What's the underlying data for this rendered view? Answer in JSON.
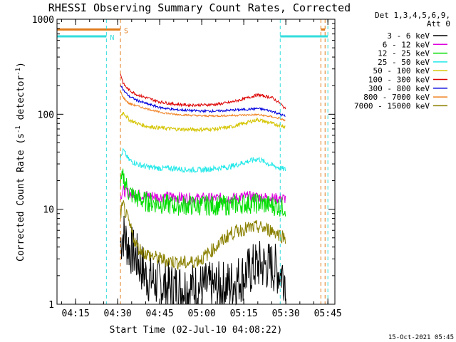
{
  "chart_data": {
    "type": "line",
    "title": "RHESSI Observing Summary Count Rates, Corrected",
    "xlabel": "Start Time (02-Jul-10 04:08:22)",
    "ylabel_main": "Corrected Count Rate (s",
    "ylabel_sup1": "-1",
    "ylabel_mid": " detector",
    "ylabel_sup2": "-1",
    "ylabel_end": ")",
    "y_scale": "log",
    "ylim": [
      1,
      1000
    ],
    "xlim": [
      "04:08:22",
      "05:47:30"
    ],
    "x_ticks": [
      "04:15",
      "04:30",
      "04:45",
      "05:00",
      "05:15",
      "05:30",
      "05:45"
    ],
    "y_ticks": [
      "1",
      "10",
      "100",
      "1000"
    ],
    "legend_title_1": "Det 1,3,4,5,6,9,",
    "legend_title_2": "Att 0",
    "legend_position": "right",
    "flags": [
      {
        "label": "S",
        "color": "#e07b1a",
        "line_x": [
          "04:08:22",
          "04:31:00"
        ],
        "level": 780,
        "vlines": [
          "04:31:00",
          "05:42:30",
          "05:44:00"
        ]
      },
      {
        "label": "N",
        "color": "#33dddd",
        "line_x": [
          "04:08:22",
          "04:26:00"
        ],
        "level": 660,
        "vlines": [
          "04:08:22",
          "04:26:00",
          "05:28:00",
          "05:45:00"
        ]
      }
    ],
    "series": [
      {
        "name": "3 - 6 keV",
        "color": "#000000",
        "x": [
          "04:31:00",
          "04:32:00",
          "04:34:00",
          "04:37:00",
          "04:40:00",
          "04:45:00",
          "04:50:00",
          "04:55:00",
          "05:00:00",
          "05:05:00",
          "05:10:00",
          "05:15:00",
          "05:20:00",
          "05:25:00",
          "05:30:00"
        ],
        "y": [
          4.5,
          5.5,
          4.0,
          3.0,
          2.0,
          1.6,
          1.5,
          1.5,
          1.5,
          1.5,
          1.6,
          2.0,
          2.6,
          2.5,
          2.0
        ]
      },
      {
        "name": "6 - 12 keV",
        "color": "#dd00dd",
        "x": [
          "04:31:00",
          "04:32:00",
          "04:35:00",
          "04:40:00",
          "04:45:00",
          "04:50:00",
          "04:55:00",
          "05:00:00",
          "05:05:00",
          "05:10:00",
          "05:15:00",
          "05:20:00",
          "05:25:00",
          "05:30:00"
        ],
        "y": [
          14,
          15.5,
          14.5,
          14,
          13.5,
          13.5,
          13,
          13,
          13,
          13,
          13.5,
          13.5,
          13,
          13
        ]
      },
      {
        "name": "12 - 25 keV",
        "color": "#00dd00",
        "x": [
          "04:31:00",
          "04:32:00",
          "04:34:00",
          "04:37:00",
          "04:40:00",
          "04:45:00",
          "04:50:00",
          "04:55:00",
          "05:00:00",
          "05:05:00",
          "05:10:00",
          "05:15:00",
          "05:20:00",
          "05:25:00",
          "05:30:00"
        ],
        "y": [
          18,
          22,
          15,
          13,
          12,
          11.5,
          11,
          11,
          11,
          11,
          11,
          11.5,
          11.5,
          11,
          10.5
        ]
      },
      {
        "name": "25 - 50 keV",
        "color": "#22e8e8",
        "x": [
          "04:31:00",
          "04:32:00",
          "04:34:00",
          "04:37:00",
          "04:40:00",
          "04:45:00",
          "04:50:00",
          "04:55:00",
          "05:00:00",
          "05:05:00",
          "05:10:00",
          "05:15:00",
          "05:20:00",
          "05:25:00",
          "05:30:00"
        ],
        "y": [
          34,
          42,
          33,
          30,
          28,
          27,
          27,
          26,
          26,
          27,
          28,
          31,
          34,
          29,
          26
        ]
      },
      {
        "name": "50 - 100 keV",
        "color": "#d4c400",
        "x": [
          "04:31:00",
          "04:32:00",
          "04:34:00",
          "04:37:00",
          "04:40:00",
          "04:45:00",
          "04:50:00",
          "04:55:00",
          "05:00:00",
          "05:05:00",
          "05:10:00",
          "05:15:00",
          "05:20:00",
          "05:25:00",
          "05:30:00"
        ],
        "y": [
          95,
          105,
          88,
          80,
          75,
          72,
          70,
          69,
          69,
          70,
          73,
          80,
          88,
          80,
          74
        ]
      },
      {
        "name": "100 - 300 keV",
        "color": "#dd0000",
        "x": [
          "04:31:00",
          "04:32:00",
          "04:34:00",
          "04:37:00",
          "04:40:00",
          "04:45:00",
          "04:50:00",
          "04:55:00",
          "05:00:00",
          "05:05:00",
          "05:10:00",
          "05:15:00",
          "05:20:00",
          "05:25:00",
          "05:28:00",
          "05:30:00"
        ],
        "y": [
          270,
          210,
          180,
          160,
          150,
          135,
          128,
          125,
          125,
          127,
          133,
          145,
          160,
          150,
          130,
          112
        ]
      },
      {
        "name": "300 - 800 keV",
        "color": "#0000dd",
        "x": [
          "04:31:00",
          "04:32:00",
          "04:34:00",
          "04:37:00",
          "04:40:00",
          "04:45:00",
          "04:50:00",
          "04:55:00",
          "05:00:00",
          "05:05:00",
          "05:10:00",
          "05:15:00",
          "05:20:00",
          "05:25:00",
          "05:28:00",
          "05:30:00"
        ],
        "y": [
          210,
          180,
          155,
          140,
          130,
          118,
          112,
          110,
          108,
          108,
          110,
          112,
          115,
          108,
          100,
          95
        ]
      },
      {
        "name": "800 - 7000 keV",
        "color": "#f08020",
        "x": [
          "04:31:00",
          "04:32:00",
          "04:34:00",
          "04:37:00",
          "04:40:00",
          "04:45:00",
          "04:50:00",
          "04:55:00",
          "05:00:00",
          "05:05:00",
          "05:10:00",
          "05:15:00",
          "05:20:00",
          "05:25:00",
          "05:28:00",
          "05:30:00"
        ],
        "y": [
          175,
          150,
          130,
          122,
          115,
          105,
          100,
          98,
          96,
          96,
          97,
          98,
          99,
          94,
          90,
          85
        ]
      },
      {
        "name": "7000 - 15000 keV",
        "color": "#8a8000",
        "x": [
          "04:31:00",
          "04:32:00",
          "04:34:00",
          "04:37:00",
          "04:40:00",
          "04:45:00",
          "04:50:00",
          "04:55:00",
          "05:00:00",
          "05:05:00",
          "05:10:00",
          "05:15:00",
          "05:20:00",
          "05:25:00",
          "05:30:00"
        ],
        "y": [
          9,
          11,
          7,
          4,
          3.4,
          3,
          2.8,
          2.7,
          3.0,
          4.0,
          5.5,
          6.2,
          6.5,
          6.0,
          5.0
        ]
      }
    ]
  },
  "footer_date": "15-Oct-2021 05:45"
}
